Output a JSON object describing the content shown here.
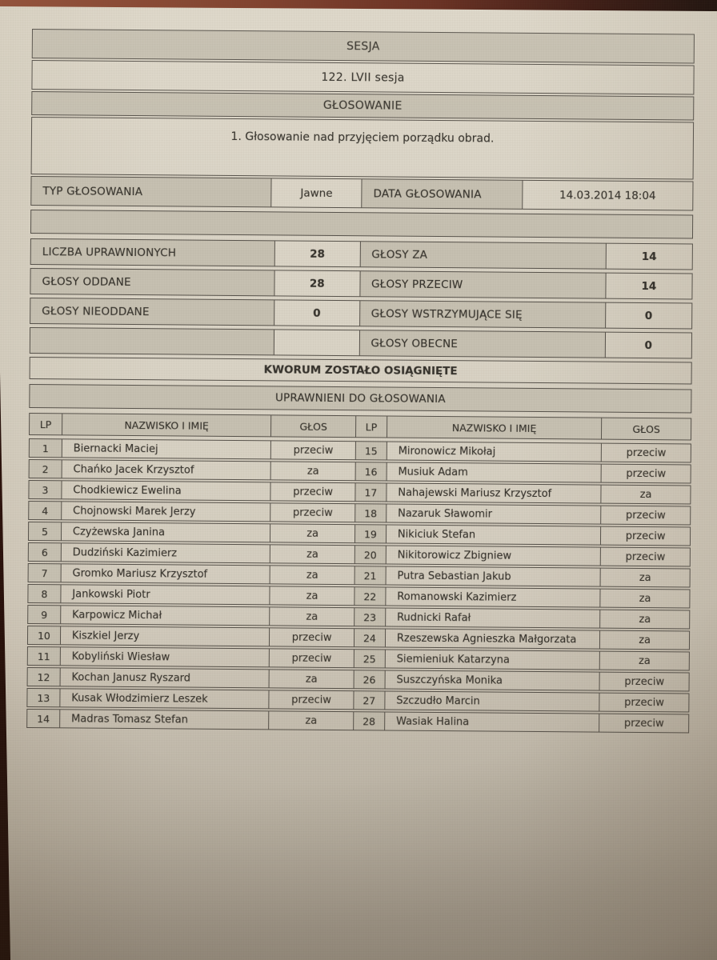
{
  "doc": {
    "header": {
      "session_label": "SESJA",
      "session_value": "122. LVII sesja",
      "voting_label": "GŁOSOWANIE",
      "agenda_item": "1. Głosowanie nad przyjęciem porządku obrad."
    },
    "meta": {
      "type_label": "TYP GŁOSOWANIA",
      "type_value": "Jawne",
      "date_label": "DATA GŁOSOWANIA",
      "date_value": "14.03.2014 18:04"
    },
    "stats": [
      {
        "left_label": "LICZBA UPRAWNIONYCH",
        "left_value": "28",
        "right_label": "GŁOSY ZA",
        "right_value": "14"
      },
      {
        "left_label": "GŁOSY ODDANE",
        "left_value": "28",
        "right_label": "GŁOSY PRZECIW",
        "right_value": "14"
      },
      {
        "left_label": "GŁOSY NIEODDANE",
        "left_value": "0",
        "right_label": "GŁOSY WSTRZYMUJĄCE SIĘ",
        "right_value": "0"
      },
      {
        "left_label": "",
        "left_value": "",
        "right_label": "GŁOSY OBECNE",
        "right_value": "0"
      }
    ],
    "quorum_text": "KWORUM ZOSTAŁO OSIĄGNIĘTE",
    "eligible_header": "UPRAWNIENI DO GŁOSOWANIA",
    "columns": {
      "lp": "LP",
      "name": "NAZWISKO I IMIĘ",
      "vote": "GŁOS"
    },
    "voters_left": [
      {
        "lp": "1",
        "name": "Biernacki Maciej",
        "vote": "przeciw"
      },
      {
        "lp": "2",
        "name": "Chańko Jacek Krzysztof",
        "vote": "za"
      },
      {
        "lp": "3",
        "name": "Chodkiewicz Ewelina",
        "vote": "przeciw"
      },
      {
        "lp": "4",
        "name": "Chojnowski Marek Jerzy",
        "vote": "przeciw"
      },
      {
        "lp": "5",
        "name": "Czyżewska Janina",
        "vote": "za"
      },
      {
        "lp": "6",
        "name": "Dudziński Kazimierz",
        "vote": "za"
      },
      {
        "lp": "7",
        "name": "Gromko Mariusz Krzysztof",
        "vote": "za"
      },
      {
        "lp": "8",
        "name": "Jankowski Piotr",
        "vote": "za"
      },
      {
        "lp": "9",
        "name": "Karpowicz Michał",
        "vote": "za"
      },
      {
        "lp": "10",
        "name": "Kiszkiel Jerzy",
        "vote": "przeciw"
      },
      {
        "lp": "11",
        "name": "Kobyliński Wiesław",
        "vote": "przeciw"
      },
      {
        "lp": "12",
        "name": "Kochan Janusz Ryszard",
        "vote": "za"
      },
      {
        "lp": "13",
        "name": "Kusak Włodzimierz Leszek",
        "vote": "przeciw"
      },
      {
        "lp": "14",
        "name": "Madras Tomasz Stefan",
        "vote": "za"
      }
    ],
    "voters_right": [
      {
        "lp": "15",
        "name": "Mironowicz Mikołaj",
        "vote": "przeciw"
      },
      {
        "lp": "16",
        "name": "Musiuk Adam",
        "vote": "przeciw"
      },
      {
        "lp": "17",
        "name": "Nahajewski Mariusz Krzysztof",
        "vote": "za"
      },
      {
        "lp": "18",
        "name": "Nazaruk Sławomir",
        "vote": "przeciw"
      },
      {
        "lp": "19",
        "name": "Nikiciuk Stefan",
        "vote": "przeciw"
      },
      {
        "lp": "20",
        "name": "Nikitorowicz Zbigniew",
        "vote": "przeciw"
      },
      {
        "lp": "21",
        "name": "Putra Sebastian Jakub",
        "vote": "za"
      },
      {
        "lp": "22",
        "name": "Romanowski Kazimierz",
        "vote": "za"
      },
      {
        "lp": "23",
        "name": "Rudnicki Rafał",
        "vote": "za"
      },
      {
        "lp": "24",
        "name": "Rzeszewska Agnieszka Małgorzata",
        "vote": "za"
      },
      {
        "lp": "25",
        "name": "Siemieniuk Katarzyna",
        "vote": "za"
      },
      {
        "lp": "26",
        "name": "Suszczyńska Monika",
        "vote": "przeciw"
      },
      {
        "lp": "27",
        "name": "Szczudło Marcin",
        "vote": "przeciw"
      },
      {
        "lp": "28",
        "name": "Wasiak Halina",
        "vote": "przeciw"
      }
    ],
    "colors": {
      "paper": "#d9d3c5",
      "cell_gray": "#c6c0b1",
      "border": "#56514a",
      "text": "#35322c",
      "background_wood": "#7c3a26"
    }
  }
}
